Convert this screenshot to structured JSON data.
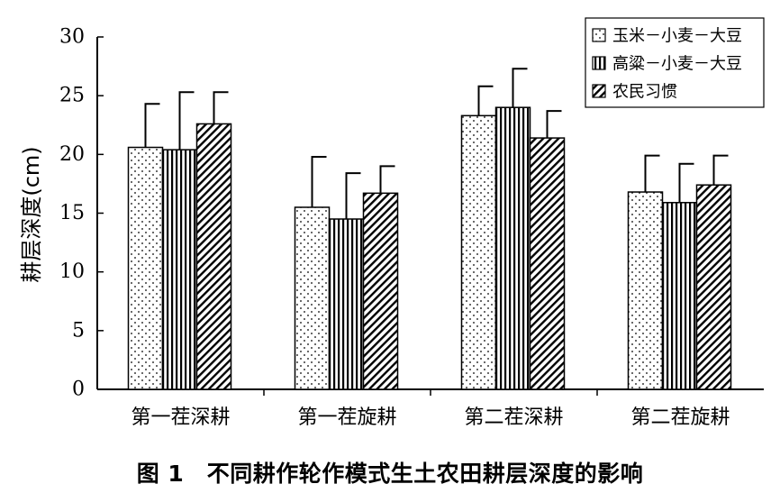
{
  "chart_data": {
    "type": "bar",
    "ylabel": "耕层深度(cm)",
    "ylim": [
      0,
      30
    ],
    "yticks": [
      0,
      5,
      10,
      15,
      20,
      25,
      30
    ],
    "categories": [
      "第一茬深耕",
      "第一茬旋耕",
      "第二茬深耕",
      "第二茬旋耕"
    ],
    "series": [
      {
        "name": "玉米－小麦－大豆",
        "pattern": "dots",
        "values": [
          20.6,
          15.5,
          23.3,
          16.8
        ],
        "errors": [
          3.7,
          4.3,
          2.5,
          3.1
        ]
      },
      {
        "name": "高粱－小麦－大豆",
        "pattern": "vertical-lines",
        "values": [
          20.4,
          14.5,
          24.0,
          15.9
        ],
        "errors": [
          4.9,
          3.9,
          3.3,
          3.3
        ]
      },
      {
        "name": "农民习惯",
        "pattern": "diagonal-lines",
        "values": [
          22.6,
          16.7,
          21.4,
          17.4
        ],
        "errors": [
          2.7,
          2.3,
          2.3,
          2.5
        ]
      }
    ],
    "legend_position": "top-right",
    "grid": false
  },
  "caption": "图 1　不同耕作轮作模式生土农田耕层深度的影响"
}
